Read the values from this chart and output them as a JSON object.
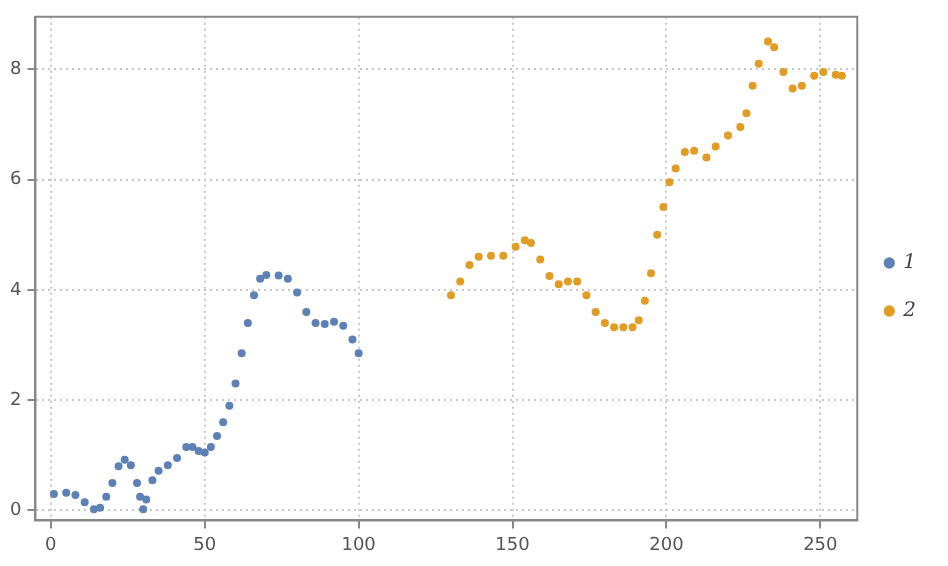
{
  "chart_data": {
    "type": "scatter",
    "marker": "circle",
    "grid": true,
    "legend": "right",
    "xlim": [
      -5,
      262
    ],
    "ylim": [
      -0.18,
      8.95
    ],
    "xticks": [
      0,
      50,
      100,
      150,
      200,
      250
    ],
    "yticks": [
      0,
      2,
      4,
      6,
      8
    ],
    "series": [
      {
        "name": "1",
        "color": "#5e81b5",
        "x": [
          1,
          5,
          8,
          11,
          14,
          16,
          18,
          20,
          22,
          24,
          26,
          28,
          29,
          30,
          31,
          33,
          35,
          38,
          41,
          44,
          46,
          48,
          50,
          52,
          54,
          56,
          58,
          60,
          62,
          64,
          66,
          68,
          70,
          74,
          77,
          80,
          83,
          86,
          89,
          92,
          95,
          98,
          100
        ],
        "values": [
          0.3,
          0.32,
          0.28,
          0.15,
          0.02,
          0.05,
          0.25,
          0.5,
          0.8,
          0.92,
          0.82,
          0.5,
          0.25,
          0.02,
          0.2,
          0.55,
          0.72,
          0.82,
          0.95,
          1.15,
          1.15,
          1.08,
          1.05,
          1.15,
          1.35,
          1.6,
          1.9,
          2.3,
          2.85,
          3.4,
          3.9,
          4.2,
          4.27,
          4.26,
          4.2,
          3.95,
          3.6,
          3.4,
          3.38,
          3.42,
          3.35,
          3.1,
          2.85
        ]
      },
      {
        "name": "2",
        "color": "#e19c24",
        "x": [
          130,
          133,
          136,
          139,
          143,
          147,
          151,
          154,
          156,
          159,
          162,
          165,
          168,
          171,
          174,
          177,
          180,
          183,
          186,
          189,
          191,
          193,
          195,
          197,
          199,
          201,
          203,
          206,
          209,
          213,
          216,
          220,
          224,
          226,
          228,
          230,
          233,
          235,
          238,
          241,
          244,
          248,
          251,
          255,
          257
        ],
        "values": [
          3.9,
          4.15,
          4.45,
          4.6,
          4.62,
          4.62,
          4.78,
          4.9,
          4.85,
          4.55,
          4.25,
          4.1,
          4.15,
          4.15,
          3.9,
          3.6,
          3.4,
          3.32,
          3.32,
          3.32,
          3.45,
          3.8,
          4.3,
          5.0,
          5.5,
          5.95,
          6.2,
          6.5,
          6.52,
          6.4,
          6.6,
          6.8,
          6.95,
          7.2,
          7.7,
          8.1,
          8.5,
          8.4,
          7.95,
          7.65,
          7.7,
          7.88,
          7.95,
          7.9,
          7.88
        ]
      }
    ]
  }
}
